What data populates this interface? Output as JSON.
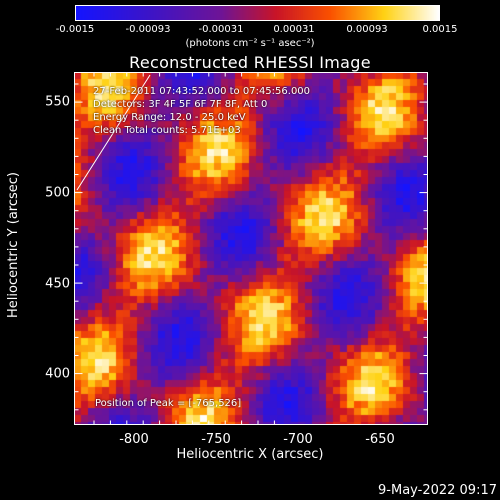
{
  "colorbar": {
    "ticks": [
      "-0.0015",
      "-0.00093",
      "-0.00031",
      "0.00031",
      "0.00093",
      "0.0015"
    ],
    "units": "(photons cm⁻² s⁻¹ asec⁻²)"
  },
  "title": "Reconstructed RHESSI Image",
  "annotations": {
    "time_range": "27-Feb-2011 07:43:52.000 to 07:45:56.000",
    "detectors": "Detectors: 3F 4F 5F 6F 7F 8F, Att 0",
    "energy": "Energy Range: 12.0 - 25.0 keV",
    "clean": "Clean    Total counts: 5.71E+03",
    "peak": "Position of Peak = [-765,526]"
  },
  "chart_data": {
    "type": "heatmap",
    "title": "Reconstructed RHESSI Image",
    "xlabel": "Heliocentric X (arcsec)",
    "ylabel": "Heliocentric Y (arcsec)",
    "xlim": [
      -832,
      -636
    ],
    "ylim": [
      371,
      567
    ],
    "xticks": [
      "-800",
      "-750",
      "-700",
      "-650"
    ],
    "yticks": [
      "400",
      "450",
      "500",
      "550"
    ],
    "color_range": [
      -0.0015,
      0.0015
    ],
    "colormap": "blue-purple-red-yellow-white",
    "peak": [
      -765,
      526
    ]
  },
  "footer": {
    "date": "9-May-2022 09:17"
  }
}
